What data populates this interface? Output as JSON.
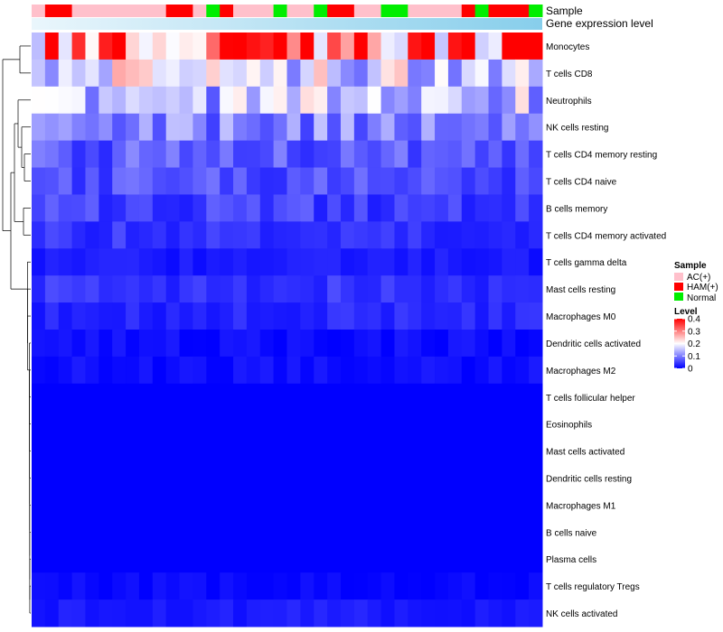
{
  "chart_data": {
    "type": "heatmap",
    "annotation_label_sample": "Sample",
    "annotation_label_expression": "Gene expression level",
    "column_groups": [
      "AC(+)",
      "HAM(+)",
      "HAM(+)",
      "AC(+)",
      "AC(+)",
      "AC(+)",
      "AC(+)",
      "AC(+)",
      "AC(+)",
      "AC(+)",
      "HAM(+)",
      "HAM(+)",
      "AC(+)",
      "Normal",
      "HAM(+)",
      "AC(+)",
      "AC(+)",
      "AC(+)",
      "Normal",
      "AC(+)",
      "AC(+)",
      "Normal",
      "HAM(+)",
      "HAM(+)",
      "AC(+)",
      "AC(+)",
      "Normal",
      "Normal",
      "AC(+)",
      "AC(+)",
      "AC(+)",
      "AC(+)",
      "HAM(+)",
      "Normal",
      "HAM(+)",
      "HAM(+)",
      "HAM(+)",
      "Normal"
    ],
    "row_labels": [
      "Monocytes",
      "T cells CD8",
      "Neutrophils",
      "NK cells resting",
      "T cells CD4 memory resting",
      "T cells CD4 naive",
      "B cells memory",
      "T cells CD4 memory activated",
      "T cells gamma delta",
      "Mast cells resting",
      "Macrophages M0",
      "Dendritic cells activated",
      "Macrophages M2",
      "T cells follicular helper",
      "Eosinophils",
      "Mast cells activated",
      "Dendritic cells resting",
      "Macrophages M1",
      "B cells naive",
      "Plasma cells",
      "T cells regulatory  Tregs",
      "NK cells activated"
    ],
    "row_means": [
      0.33,
      0.19,
      0.15,
      0.1,
      0.07,
      0.06,
      0.05,
      0.04,
      0.02,
      0.04,
      0.03,
      0.01,
      0.01,
      0.003,
      0.0,
      0.0,
      0.0,
      0.0,
      0.0,
      0.0,
      0.005,
      0.02
    ],
    "value_range": [
      0,
      0.4
    ],
    "legend": {
      "sample_title": "Sample",
      "sample_entries": [
        {
          "label": "AC(+)",
          "color": "#FFC0CB"
        },
        {
          "label": "HAM(+)",
          "color": "#FF0000"
        },
        {
          "label": "Normal",
          "color": "#00EE00"
        }
      ],
      "level_title": "Level",
      "level_ticks": [
        {
          "value": 0.4,
          "label": "0.4"
        },
        {
          "value": 0.3,
          "label": "0.3"
        },
        {
          "value": 0.2,
          "label": "0.2"
        },
        {
          "value": 0.1,
          "label": "0.1"
        },
        {
          "value": 0,
          "label": "0"
        }
      ]
    },
    "colors": {
      "low": "#0000FF",
      "mid": "#FFFFFF",
      "high": "#FF0000",
      "expression_bar": "#87CEEB"
    }
  }
}
